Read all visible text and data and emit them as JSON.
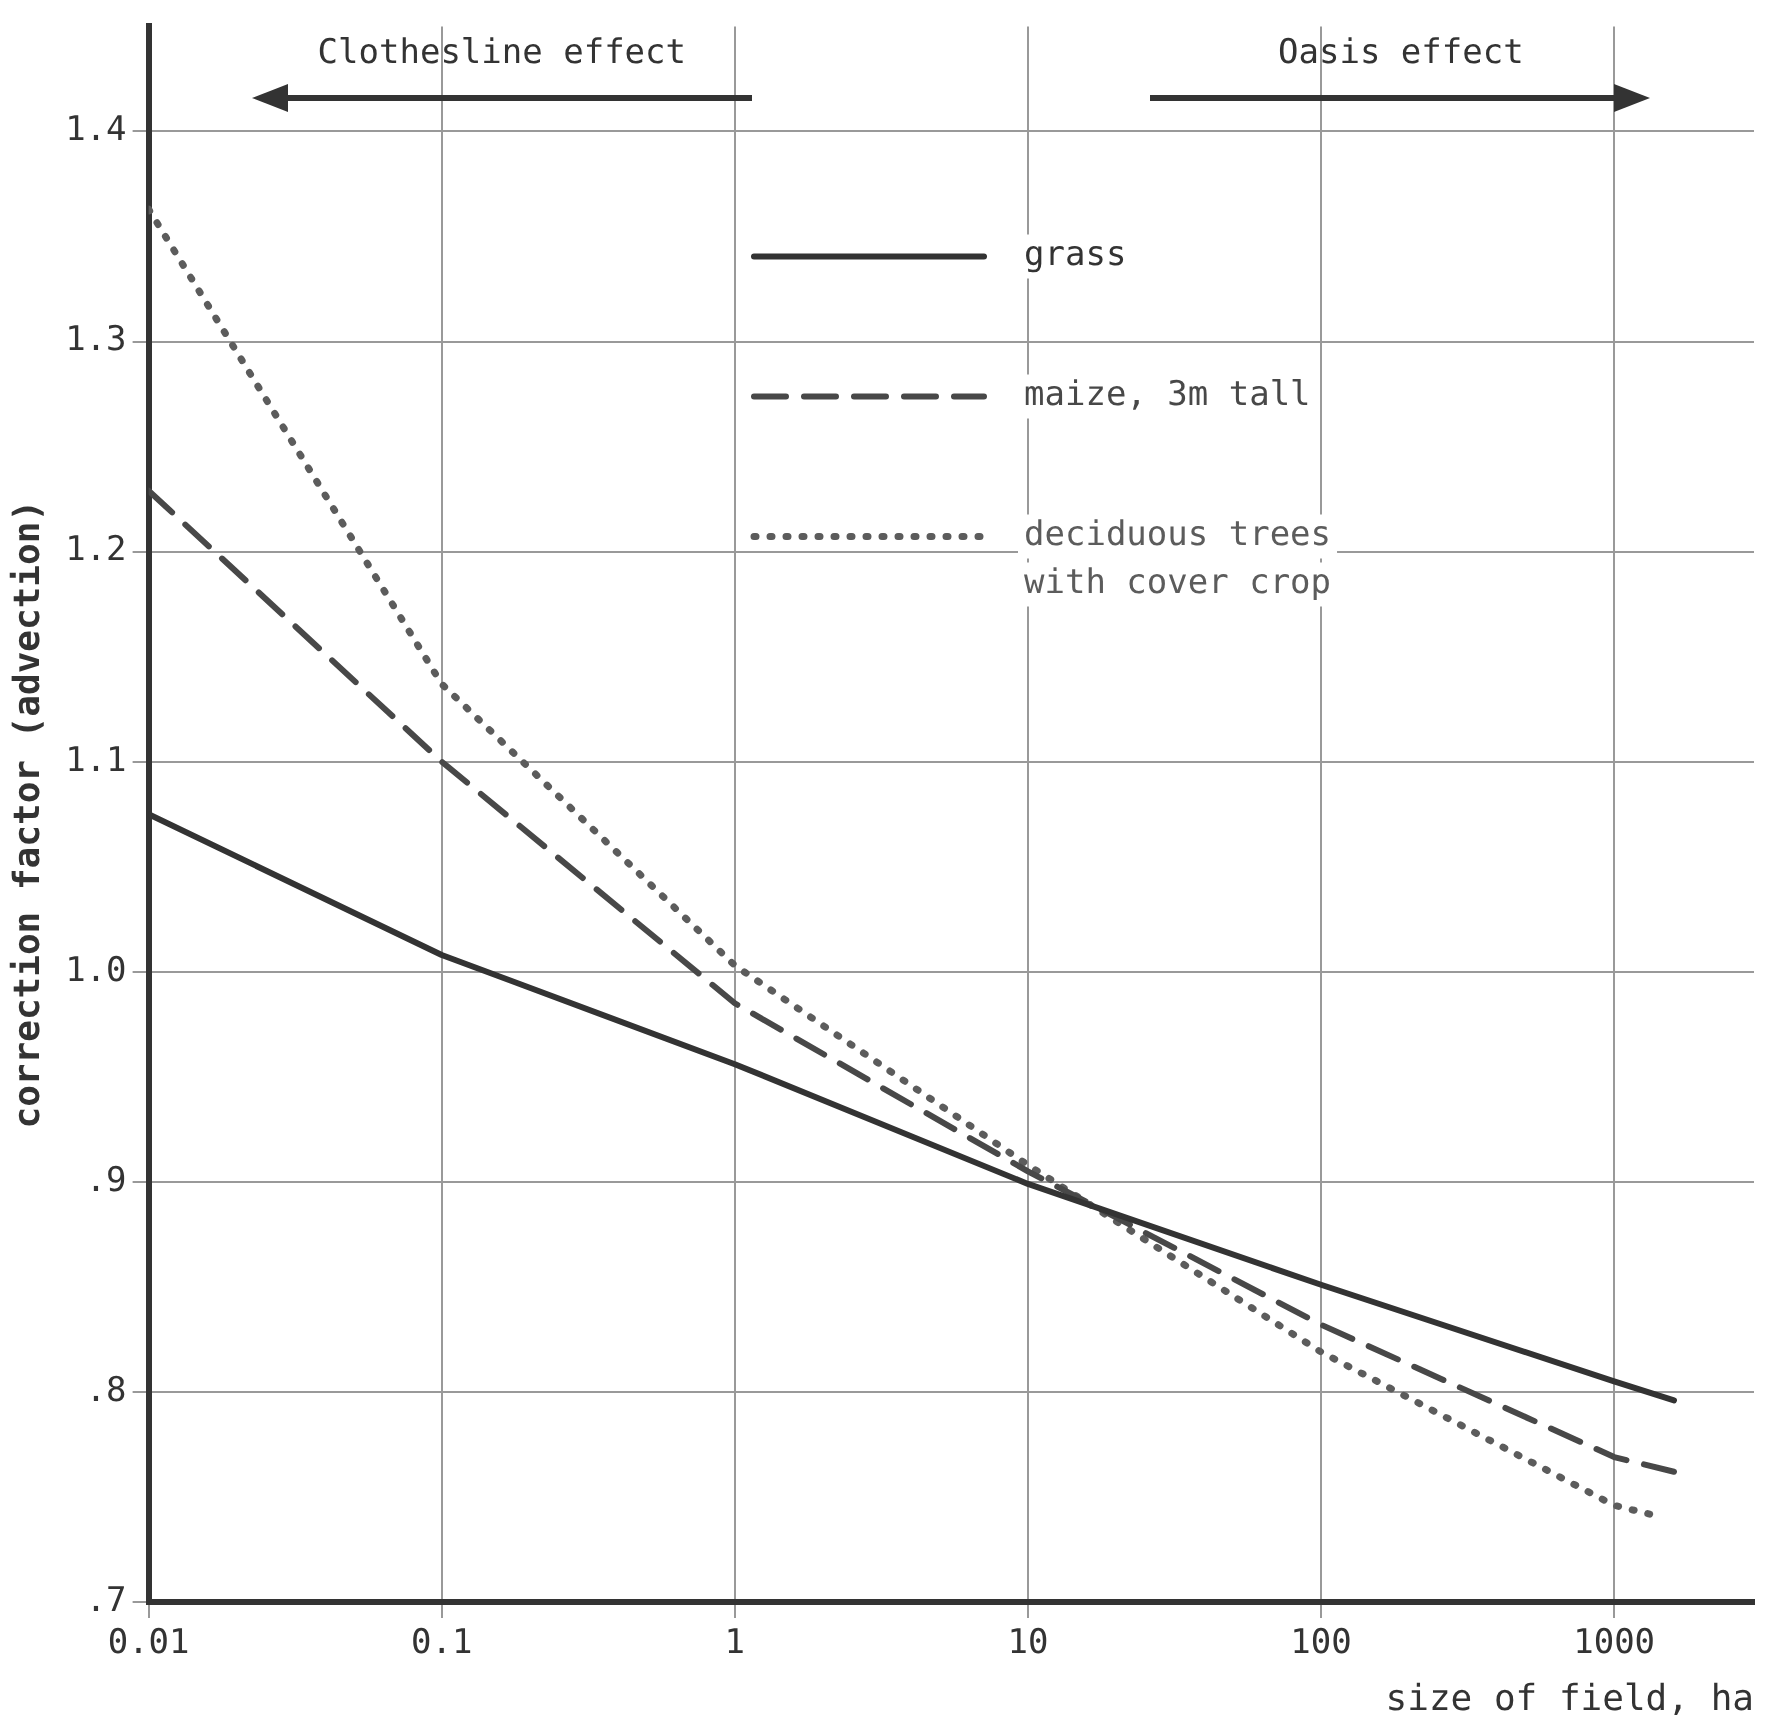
{
  "chart_data": {
    "type": "line",
    "xlabel": "size of field, ha",
    "ylabel": "correction factor (advection)",
    "annotations": [
      "Clothesline effect",
      "Oasis effect"
    ],
    "log": "x",
    "xlim": [
      0.01,
      3000
    ],
    "xticks": [
      0.01,
      0.1,
      1,
      10,
      100,
      1000
    ],
    "ylim": [
      0.7,
      1.45
    ],
    "yticks": [
      {
        "value": 0.7,
        "label": ".7"
      },
      {
        "value": 0.8,
        "label": ".8"
      },
      {
        "value": 0.9,
        "label": ".9"
      },
      {
        "value": 1,
        "label": "1.0"
      },
      1.1,
      1.2,
      1.3,
      1.4
    ],
    "grid": true,
    "legend": "top right",
    "series": [
      {
        "name": "grass",
        "color": "#333333",
        "line_style": "solid",
        "x": [
          0.01,
          0.1,
          1,
          10,
          100,
          1000,
          1600
        ],
        "values": [
          1.075,
          1.008,
          0.956,
          0.899,
          0.851,
          0.805,
          0.796
        ]
      },
      {
        "name": "maize, 3m tall",
        "color": "#484848",
        "line_style": "dashed",
        "x": [
          0.01,
          0.1,
          1,
          10,
          100,
          1000,
          1600
        ],
        "values": [
          1.229,
          1.1,
          0.985,
          0.905,
          0.832,
          0.769,
          0.762
        ]
      },
      {
        "name": "deciduous trees with cover crop",
        "color": "#5c5c5c",
        "line_style": "dotted",
        "x": [
          0.01,
          0.1,
          1,
          10,
          100,
          1000,
          1400
        ],
        "values": [
          1.363,
          1.137,
          1.003,
          0.908,
          0.819,
          0.746,
          0.741
        ]
      }
    ]
  }
}
